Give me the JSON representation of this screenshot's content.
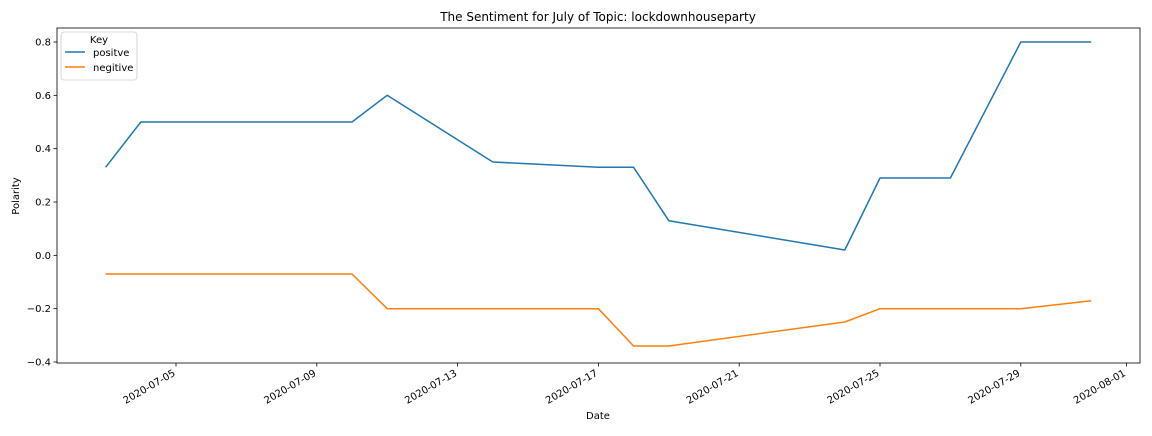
{
  "chart_data": {
    "type": "line",
    "title": "The Sentiment for July of Topic: lockdownhouseparty",
    "xlabel": "Date",
    "ylabel": "Polarity",
    "x_axis_type": "date",
    "xlim": [
      "2020-07-02",
      "2020-08-01"
    ],
    "ylim": [
      -0.4,
      0.85
    ],
    "xticks": [
      "2020-07-05",
      "2020-07-09",
      "2020-07-13",
      "2020-07-17",
      "2020-07-21",
      "2020-07-25",
      "2020-07-29",
      "2020-08-01"
    ],
    "yticks": [
      -0.4,
      -0.2,
      0.0,
      0.2,
      0.4,
      0.6,
      0.8
    ],
    "ytick_labels": [
      "−0.4",
      "−0.2",
      "0.0",
      "0.2",
      "0.4",
      "0.6",
      "0.8"
    ],
    "grid": false,
    "legend": {
      "title": "Key",
      "position": "top-left"
    },
    "series": [
      {
        "name": "positve",
        "color": "#1f77b4",
        "x": [
          "2020-07-03",
          "2020-07-04",
          "2020-07-10",
          "2020-07-11",
          "2020-07-14",
          "2020-07-17",
          "2020-07-18",
          "2020-07-19",
          "2020-07-24",
          "2020-07-25",
          "2020-07-27",
          "2020-07-29",
          "2020-07-31"
        ],
        "y": [
          0.33,
          0.5,
          0.5,
          0.6,
          0.35,
          0.33,
          0.33,
          0.13,
          0.02,
          0.29,
          0.29,
          0.8,
          0.8
        ]
      },
      {
        "name": "negitive",
        "color": "#ff7f0e",
        "x": [
          "2020-07-03",
          "2020-07-10",
          "2020-07-11",
          "2020-07-17",
          "2020-07-18",
          "2020-07-19",
          "2020-07-24",
          "2020-07-25",
          "2020-07-29",
          "2020-07-31"
        ],
        "y": [
          -0.07,
          -0.07,
          -0.2,
          -0.2,
          -0.34,
          -0.34,
          -0.25,
          -0.2,
          -0.2,
          -0.17
        ]
      }
    ]
  }
}
